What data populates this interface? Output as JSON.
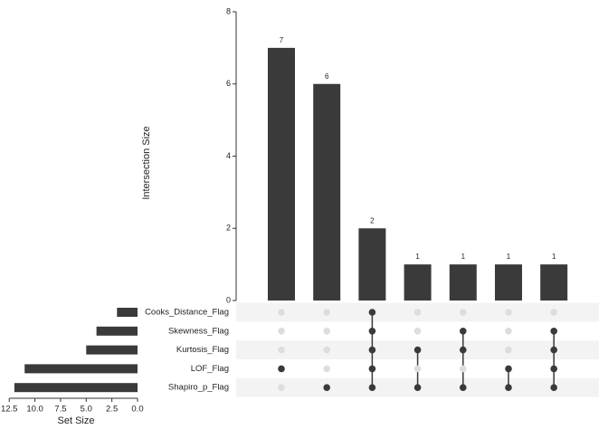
{
  "chart_data": {
    "type": "upset",
    "ylabel": "Intersection Size",
    "values": [
      7,
      6,
      2,
      1,
      1,
      1,
      1
    ],
    "ylim": [
      0,
      8
    ],
    "yticks": [
      0,
      2,
      4,
      6,
      8
    ],
    "color": "#3a3a3a",
    "sets": [
      "Cooks_Distance_Flag",
      "Skewness_Flag",
      "Kurtosis_Flag",
      "LOF_Flag",
      "Shapiro_p_Flag"
    ],
    "set_sizes": [
      2,
      4,
      5,
      11,
      12
    ],
    "set_size_label": "Set Size",
    "xlim": [
      13.4,
      0
    ],
    "xticks": [
      12.5,
      {
        "value": 10,
        "label": "10.0"
      },
      {
        "value": 7.5,
        "label": "7.5"
      },
      {
        "value": 5,
        "label": "5.0"
      },
      {
        "value": 2.5,
        "label": "2.5"
      },
      {
        "value": 0,
        "label": "0.0"
      }
    ],
    "membership": [
      [
        0,
        0,
        0,
        1,
        0
      ],
      [
        0,
        0,
        0,
        0,
        1
      ],
      [
        1,
        1,
        1,
        1,
        1
      ],
      [
        0,
        0,
        1,
        0,
        1
      ],
      [
        0,
        1,
        1,
        0,
        1
      ],
      [
        0,
        0,
        0,
        1,
        1
      ],
      [
        0,
        1,
        1,
        1,
        1
      ]
    ]
  }
}
